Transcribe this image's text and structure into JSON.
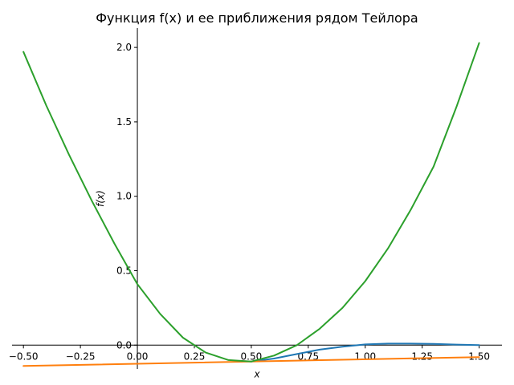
{
  "chart_data": {
    "type": "line",
    "title": "Функция f(x) и ее приближения рядом Тейлора",
    "xlabel": "x",
    "ylabel": "f(x)",
    "xlim": [
      -0.55,
      1.6
    ],
    "ylim": [
      -0.16,
      2.13
    ],
    "grid": false,
    "legend": "none",
    "x_ticks": [
      -0.5,
      -0.25,
      0.0,
      0.25,
      0.5,
      0.75,
      1.0,
      1.25,
      1.5
    ],
    "x_tick_labels": [
      "−0.50",
      "−0.25",
      "0.00",
      "0.25",
      "0.50",
      "0.75",
      "1.00",
      "1.25",
      "1.50"
    ],
    "y_ticks": [
      0.0,
      0.5,
      1.0,
      1.5,
      2.0
    ],
    "y_tick_labels": [
      "0.0",
      "0.5",
      "1.0",
      "1.5",
      "2.0"
    ],
    "series": [
      {
        "color": "#1f77b4",
        "x": [
          0.5,
          0.6,
          0.7,
          0.8,
          0.9,
          1.0,
          1.1,
          1.2,
          1.3,
          1.4,
          1.5
        ],
        "y": [
          -0.11,
          -0.09,
          -0.06,
          -0.03,
          -0.01,
          0.005,
          0.01,
          0.01,
          0.008,
          0.004,
          0.0
        ]
      },
      {
        "color": "#ff7f0e",
        "x": [
          -0.5,
          1.5
        ],
        "y": [
          -0.14,
          -0.08
        ]
      },
      {
        "color": "#2ca02c",
        "x": [
          -0.5,
          -0.4,
          -0.3,
          -0.2,
          -0.1,
          0.0,
          0.1,
          0.2,
          0.3,
          0.4,
          0.5,
          0.6,
          0.7,
          0.8,
          0.9,
          1.0,
          1.1,
          1.2,
          1.3,
          1.4,
          1.5
        ],
        "y": [
          1.97,
          1.61,
          1.28,
          0.97,
          0.68,
          0.41,
          0.21,
          0.05,
          -0.05,
          -0.1,
          -0.11,
          -0.07,
          0.0,
          0.11,
          0.25,
          0.43,
          0.65,
          0.91,
          1.2,
          1.6,
          2.03
        ]
      }
    ]
  }
}
